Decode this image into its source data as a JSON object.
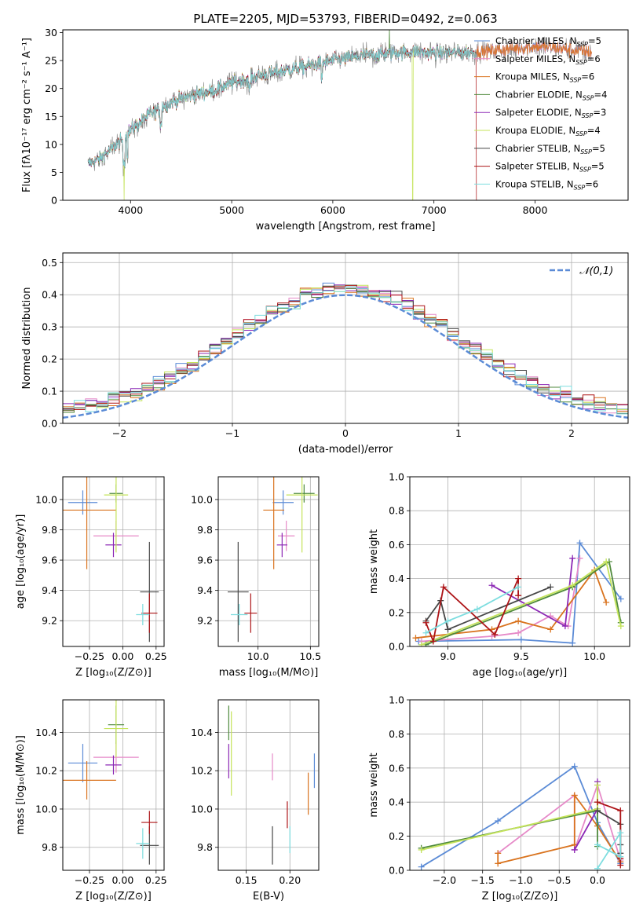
{
  "figure_title": "PLATE=2205, MJD=53793, FIBERID=0492, z=0.063",
  "colors": {
    "cmiles": "#5b8bd6",
    "smiles": "#e68ac8",
    "kmiles": "#d9731e",
    "celodie": "#4f8a3c",
    "selodie": "#8c28b5",
    "kelodie": "#c4e35a",
    "cstelib": "#474747",
    "sstelib": "#ad1417",
    "kstelib": "#7ddddf",
    "data": "#8a8a8a",
    "grid": "#b0b0b0",
    "normal": "#5b8bd6"
  },
  "chart_data": [
    {
      "id": "spectrum",
      "type": "line",
      "title": "PLATE=2205, MJD=53793, FIBERID=0492, z=0.063",
      "xlabel": "wavelength [Angstrom, rest frame]",
      "ylabel": "Flux [fλ10⁻¹⁷ erg cm⁻² s⁻¹ A⁻¹]",
      "xlim": [
        3330,
        8920
      ],
      "ylim": [
        0,
        30.5
      ],
      "xticks": [
        4000,
        5000,
        6000,
        7000,
        8000
      ],
      "yticks": [
        0,
        5,
        10,
        15,
        20,
        25,
        30
      ],
      "grid": false,
      "legend_position": "right",
      "continuum": {
        "x": [
          3580,
          3700,
          3900,
          4000,
          4200,
          4400,
          4600,
          4800,
          5000,
          5200,
          5400,
          5600,
          5800,
          6000,
          6200,
          6400,
          6600,
          6800,
          7000,
          7200,
          7400,
          7600,
          7800,
          8000,
          8200,
          8400,
          8560
        ],
        "y": [
          6.5,
          7.5,
          10.5,
          12.5,
          15.5,
          17.5,
          18.8,
          19.5,
          21.0,
          22.0,
          22.8,
          23.5,
          24.2,
          25.0,
          25.6,
          26.0,
          26.4,
          26.6,
          26.4,
          26.4,
          26.5,
          26.8,
          27.2,
          27.5,
          27.3,
          26.8,
          26.5
        ]
      },
      "series": [
        {
          "name": "Chabrier MILES, N_SSP=5",
          "label_main": "Chabrier MILES, N",
          "label_sub": "SSP",
          "label_end": "=5",
          "color_key": "cmiles"
        },
        {
          "name": "Salpeter MILES, N_SSP=6",
          "label_main": "Salpeter MILES, N",
          "label_sub": "SSP",
          "label_end": "=6",
          "color_key": "smiles"
        },
        {
          "name": "Kroupa MILES, N_SSP=6",
          "label_main": "Kroupa MILES, N",
          "label_sub": "SSP",
          "label_end": "=6",
          "color_key": "kmiles"
        },
        {
          "name": "Chabrier ELODIE, N_SSP=4",
          "label_main": "Chabrier ELODIE, N",
          "label_sub": "SSP",
          "label_end": "=4",
          "color_key": "celodie"
        },
        {
          "name": "Salpeter ELODIE, N_SSP=3",
          "label_main": "Salpeter ELODIE, N",
          "label_sub": "SSP",
          "label_end": "=3",
          "color_key": "selodie"
        },
        {
          "name": "Kroupa ELODIE, N_SSP=4",
          "label_main": "Kroupa ELODIE, N",
          "label_sub": "SSP",
          "label_end": "=4",
          "color_key": "kelodie"
        },
        {
          "name": "Chabrier STELIB, N_SSP=5",
          "label_main": "Chabrier STELIB, N",
          "label_sub": "SSP",
          "label_end": "=5",
          "color_key": "cstelib"
        },
        {
          "name": "Salpeter STELIB, N_SSP=5",
          "label_main": "Salpeter STELIB, N",
          "label_sub": "SSP",
          "label_end": "=5",
          "color_key": "sstelib"
        },
        {
          "name": "Kroupa STELIB, N_SSP=6",
          "label_main": "Kroupa STELIB, N",
          "label_sub": "SSP",
          "label_end": "=6",
          "color_key": "kstelib"
        }
      ]
    },
    {
      "id": "residuals",
      "type": "line",
      "xlabel": "(data-model)/error",
      "ylabel": "Normed distribution",
      "xlim": [
        -2.5,
        2.5
      ],
      "ylim": [
        0,
        0.53
      ],
      "xticks": [
        -2,
        -1,
        0,
        1,
        2
      ],
      "xtick_labels": [
        "−2",
        "−1",
        "0",
        "1",
        "2"
      ],
      "yticks": [
        0.0,
        0.1,
        0.2,
        0.3,
        0.4,
        0.5
      ],
      "ytick_labels": [
        "0.0",
        "0.1",
        "0.2",
        "0.3",
        "0.4",
        "0.5"
      ],
      "grid": true,
      "legend_entry": "𝒩(0,1)",
      "legend_position": "top-right",
      "bin_width": 0.1,
      "bin_start": -2.5
    },
    {
      "id": "age-vs-z",
      "type": "scatter",
      "xlabel": "Z [log₁₀(Z/Z⊙)]",
      "ylabel": "age  [log₁₀(age/yr)]",
      "xlim": [
        -0.45,
        0.31
      ],
      "ylim": [
        9.03,
        10.15
      ],
      "xticks": [
        -0.25,
        0.0,
        0.25
      ],
      "xtick_labels": [
        "−0.25",
        "0.00",
        "0.25"
      ],
      "yticks": [
        9.2,
        9.4,
        9.6,
        9.8,
        10.0
      ],
      "ytick_labels": [
        "9.2",
        "9.4",
        "9.6",
        "9.8",
        "10.0"
      ],
      "grid": true,
      "points": [
        {
          "color_key": "cmiles",
          "x": -0.3,
          "xerr": 0.11,
          "y": 9.98,
          "yerr": 0.08
        },
        {
          "color_key": "smiles",
          "x": -0.05,
          "xerr": 0.17,
          "y": 9.76,
          "yerr": 0.1
        },
        {
          "color_key": "kmiles",
          "x": -0.27,
          "xerr": 0.22,
          "y": 9.93,
          "yerr": 0.39
        },
        {
          "color_key": "celodie",
          "x": -0.05,
          "xerr": 0.05,
          "y": 10.04,
          "yerr": 0.06
        },
        {
          "color_key": "selodie",
          "x": -0.07,
          "xerr": 0.06,
          "y": 9.7,
          "yerr": 0.08
        },
        {
          "color_key": "kelodie",
          "x": -0.05,
          "xerr": 0.09,
          "y": 10.03,
          "yerr": 0.38
        },
        {
          "color_key": "cstelib",
          "x": 0.2,
          "xerr": 0.07,
          "y": 9.39,
          "yerr": 0.33
        },
        {
          "color_key": "sstelib",
          "x": 0.2,
          "xerr": 0.06,
          "y": 9.25,
          "yerr": 0.13
        },
        {
          "color_key": "kstelib",
          "x": 0.15,
          "xerr": 0.05,
          "y": 9.24,
          "yerr": 0.07
        }
      ]
    },
    {
      "id": "age-vs-mass",
      "type": "scatter",
      "xlabel": "mass [log₁₀(M/M⊙)]",
      "xlim": [
        9.62,
        10.58
      ],
      "ylim": [
        9.03,
        10.15
      ],
      "xticks": [
        10.0,
        10.5
      ],
      "xtick_labels": [
        "10.0",
        "10.5"
      ],
      "yticks": [
        9.2,
        9.4,
        9.6,
        9.8,
        10.0
      ],
      "ytick_labels": [
        "9.2",
        "9.4",
        "9.6",
        "9.8",
        "10.0"
      ],
      "grid": true,
      "points": [
        {
          "color_key": "cmiles",
          "x": 10.24,
          "xerr": 0.1,
          "y": 9.98,
          "yerr": 0.08
        },
        {
          "color_key": "smiles",
          "x": 10.27,
          "xerr": 0.08,
          "y": 9.76,
          "yerr": 0.1
        },
        {
          "color_key": "kmiles",
          "x": 10.15,
          "xerr": 0.1,
          "y": 9.93,
          "yerr": 0.39
        },
        {
          "color_key": "celodie",
          "x": 10.44,
          "xerr": 0.1,
          "y": 10.04,
          "yerr": 0.06
        },
        {
          "color_key": "selodie",
          "x": 10.23,
          "xerr": 0.05,
          "y": 9.7,
          "yerr": 0.08
        },
        {
          "color_key": "kelodie",
          "x": 10.42,
          "xerr": 0.15,
          "y": 10.03,
          "yerr": 0.38
        },
        {
          "color_key": "cstelib",
          "x": 9.81,
          "xerr": 0.1,
          "y": 9.39,
          "yerr": 0.33
        },
        {
          "color_key": "sstelib",
          "x": 9.93,
          "xerr": 0.06,
          "y": 9.25,
          "yerr": 0.13
        },
        {
          "color_key": "kstelib",
          "x": 9.82,
          "xerr": 0.08,
          "y": 9.24,
          "yerr": 0.07
        }
      ]
    },
    {
      "id": "mass-weight-vs-age",
      "type": "line",
      "xlabel": "age  [log₁₀(age/yr)]",
      "ylabel": "mass weight",
      "xlim": [
        8.74,
        10.24
      ],
      "ylim": [
        0,
        1
      ],
      "xticks": [
        9.0,
        9.5,
        10.0
      ],
      "xtick_labels": [
        "9.0",
        "9.5",
        "10.0"
      ],
      "yticks": [
        0,
        0.2,
        0.4,
        0.6,
        0.8,
        1.0
      ],
      "ytick_labels": [
        "0.0",
        "0.2",
        "0.4",
        "0.6",
        "0.8",
        "1.0"
      ],
      "grid": true,
      "series": [
        {
          "color_key": "cmiles",
          "x": [
            8.8,
            9.5,
            9.85,
            9.9,
            10.18
          ],
          "y": [
            0.03,
            0.04,
            0.02,
            0.61,
            0.28
          ]
        },
        {
          "color_key": "smiles",
          "x": [
            8.82,
            9.3,
            9.48,
            9.7,
            9.82,
            9.9
          ],
          "y": [
            0.03,
            0.06,
            0.08,
            0.18,
            0.12,
            0.52
          ]
        },
        {
          "color_key": "kmiles",
          "x": [
            8.78,
            9.3,
            9.48,
            9.7,
            10.0,
            10.08
          ],
          "y": [
            0.05,
            0.1,
            0.15,
            0.1,
            0.45,
            0.26
          ]
        },
        {
          "color_key": "celodie",
          "x": [
            8.85,
            9.85,
            10.1,
            10.18
          ],
          "y": [
            0.01,
            0.35,
            0.5,
            0.14
          ]
        },
        {
          "color_key": "selodie",
          "x": [
            9.3,
            9.8,
            9.85
          ],
          "y": [
            0.36,
            0.12,
            0.52
          ]
        },
        {
          "color_key": "kelodie",
          "x": [
            8.82,
            9.85,
            10.08,
            10.18
          ],
          "y": [
            0.01,
            0.36,
            0.5,
            0.12
          ]
        },
        {
          "color_key": "cstelib",
          "x": [
            8.85,
            8.95,
            9.0,
            9.7
          ],
          "y": [
            0.15,
            0.27,
            0.1,
            0.35
          ]
        },
        {
          "color_key": "sstelib",
          "x": [
            8.85,
            8.9,
            8.97,
            9.32,
            9.48,
            9.48
          ],
          "y": [
            0.14,
            0.03,
            0.35,
            0.07,
            0.4,
            0.3
          ]
        },
        {
          "color_key": "kstelib",
          "x": [
            8.85,
            9.0,
            9.2,
            9.48
          ],
          "y": [
            0.08,
            0.15,
            0.22,
            0.35
          ]
        }
      ]
    },
    {
      "id": "mass-vs-z",
      "type": "scatter",
      "xlabel": "Z [log₁₀(Z/Z⊙)]",
      "ylabel": "mass [log₁₀(M/M⊙)]",
      "xlim": [
        -0.45,
        0.31
      ],
      "ylim": [
        9.68,
        10.57
      ],
      "xticks": [
        -0.25,
        0.0,
        0.25
      ],
      "xtick_labels": [
        "−0.25",
        "0.00",
        "0.25"
      ],
      "yticks": [
        9.8,
        10.0,
        10.2,
        10.4
      ],
      "ytick_labels": [
        "9.8",
        "10.0",
        "10.2",
        "10.4"
      ],
      "grid": true,
      "points": [
        {
          "color_key": "cmiles",
          "x": -0.3,
          "xerr": 0.11,
          "y": 10.24,
          "yerr": 0.1
        },
        {
          "color_key": "smiles",
          "x": -0.05,
          "xerr": 0.17,
          "y": 10.27,
          "yerr": 0.08
        },
        {
          "color_key": "kmiles",
          "x": -0.27,
          "xerr": 0.22,
          "y": 10.15,
          "yerr": 0.1
        },
        {
          "color_key": "celodie",
          "x": -0.05,
          "xerr": 0.06,
          "y": 10.44,
          "yerr": 0.1
        },
        {
          "color_key": "selodie",
          "x": -0.07,
          "xerr": 0.06,
          "y": 10.23,
          "yerr": 0.05
        },
        {
          "color_key": "kelodie",
          "x": -0.05,
          "xerr": 0.09,
          "y": 10.42,
          "yerr": 0.15
        },
        {
          "color_key": "cstelib",
          "x": 0.2,
          "xerr": 0.07,
          "y": 9.81,
          "yerr": 0.1
        },
        {
          "color_key": "sstelib",
          "x": 0.2,
          "xerr": 0.06,
          "y": 9.93,
          "yerr": 0.06
        },
        {
          "color_key": "kstelib",
          "x": 0.15,
          "xerr": 0.05,
          "y": 9.82,
          "yerr": 0.08
        }
      ]
    },
    {
      "id": "mass-vs-ebv",
      "type": "scatter",
      "xlabel": "E(B-V)",
      "xlim": [
        0.118,
        0.233
      ],
      "ylim": [
        9.68,
        10.57
      ],
      "xticks": [
        0.15,
        0.2
      ],
      "xtick_labels": [
        "0.15",
        "0.20"
      ],
      "yticks": [
        9.8,
        10.0,
        10.2,
        10.4
      ],
      "ytick_labels": [
        "9.8",
        "10.0",
        "10.2",
        "10.4"
      ],
      "grid": true,
      "points": [
        {
          "color_key": "cmiles",
          "x": 0.228,
          "y": 10.2,
          "yerr": 0.09
        },
        {
          "color_key": "smiles",
          "x": 0.18,
          "y": 10.22,
          "yerr": 0.07
        },
        {
          "color_key": "kmiles",
          "x": 0.221,
          "y": 10.08,
          "yerr": 0.11
        },
        {
          "color_key": "celodie",
          "x": 0.13,
          "y": 10.45,
          "yerr": 0.09
        },
        {
          "color_key": "selodie",
          "x": 0.13,
          "y": 10.25,
          "yerr": 0.09
        },
        {
          "color_key": "kelodie",
          "x": 0.133,
          "y": 10.29,
          "yerr": 0.22
        },
        {
          "color_key": "cstelib",
          "x": 0.18,
          "y": 9.81,
          "yerr": 0.1
        },
        {
          "color_key": "sstelib",
          "x": 0.197,
          "y": 9.97,
          "yerr": 0.07
        },
        {
          "color_key": "kstelib",
          "x": 0.2,
          "y": 9.84,
          "yerr": 0.07
        }
      ]
    },
    {
      "id": "mass-weight-vs-z",
      "type": "line",
      "xlabel": "Z [log₁₀(Z/Z⊙)]",
      "ylabel": "mass weight",
      "xlim": [
        -2.45,
        0.42
      ],
      "ylim": [
        0,
        1
      ],
      "xticks": [
        -2.0,
        -1.5,
        -1.0,
        -0.5,
        0.0
      ],
      "xtick_labels": [
        "−2.0",
        "−1.5",
        "−1.0",
        "−0.5",
        "0.0"
      ],
      "yticks": [
        0,
        0.2,
        0.4,
        0.6,
        0.8,
        1.0
      ],
      "ytick_labels": [
        "0.0",
        "0.2",
        "0.4",
        "0.6",
        "0.8",
        "1.0"
      ],
      "grid": true,
      "series": [
        {
          "color_key": "cmiles",
          "x": [
            -2.3,
            -1.3,
            -0.3,
            0.0,
            0.3
          ],
          "y": [
            0.02,
            0.29,
            0.61,
            0.28,
            0.04
          ]
        },
        {
          "color_key": "smiles",
          "x": [
            -1.3,
            -0.3,
            -0.3,
            0.0,
            0.3
          ],
          "y": [
            0.1,
            0.44,
            0.12,
            0.5,
            0.06
          ]
        },
        {
          "color_key": "kmiles",
          "x": [
            -1.3,
            -1.3,
            -0.3,
            -0.3,
            0.0,
            0.3
          ],
          "y": [
            0.1,
            0.04,
            0.15,
            0.44,
            0.26,
            0.05
          ]
        },
        {
          "color_key": "celodie",
          "x": [
            -2.3,
            0.0,
            0.0
          ],
          "y": [
            0.13,
            0.35,
            0.14
          ]
        },
        {
          "color_key": "selodie",
          "x": [
            -0.3,
            0.0,
            0.0
          ],
          "y": [
            0.12,
            0.36,
            0.52
          ]
        },
        {
          "color_key": "kelodie",
          "x": [
            -2.3,
            0.0,
            0.0
          ],
          "y": [
            0.12,
            0.36,
            0.5
          ]
        },
        {
          "color_key": "cstelib",
          "x": [
            0.0,
            0.3,
            0.3,
            0.3
          ],
          "y": [
            0.35,
            0.27,
            0.1,
            0.15
          ]
        },
        {
          "color_key": "sstelib",
          "x": [
            0.0,
            0.3,
            0.3,
            0.3
          ],
          "y": [
            0.4,
            0.35,
            0.07,
            0.03
          ]
        },
        {
          "color_key": "kstelib",
          "x": [
            0.0,
            0.3,
            0.3,
            0.0
          ],
          "y": [
            0.01,
            0.22,
            0.08,
            0.15
          ]
        }
      ]
    }
  ]
}
